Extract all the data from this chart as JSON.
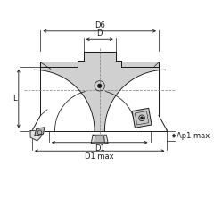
{
  "bg_color": "#ffffff",
  "line_color": "#1a1a1a",
  "dim_color": "#1a1a1a",
  "fill_body": "#d0d0d0",
  "fill_light": "#e0e0e0",
  "fill_dark": "#b0b0b0",
  "dashed_color": "#888888",
  "labels": {
    "D6": "D6",
    "D": "D",
    "D1": "D1",
    "D1max": "D1 max",
    "L": "L",
    "Ap1max": "Ap1 max"
  },
  "figsize": [
    2.4,
    2.4
  ],
  "dpi": 100
}
